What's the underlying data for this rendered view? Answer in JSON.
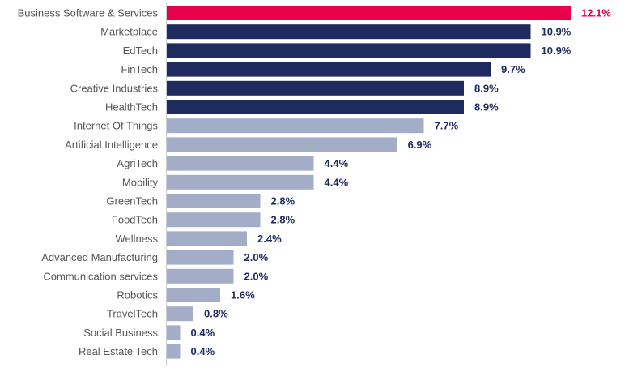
{
  "chart_data": {
    "type": "bar",
    "orientation": "horizontal",
    "categories": [
      "Business Software & Services",
      "Marketplace",
      "EdTech",
      "FinTech",
      "Creative Industries",
      "HealthTech",
      "Internet Of Things",
      "Artificial Intelligence",
      "AgriTech",
      "Mobility",
      "GreenTech",
      "FoodTech",
      "Wellness",
      "Advanced Manufacturing",
      "Communication services",
      "Robotics",
      "TravelTech",
      "Social Business",
      "Real Estate Tech"
    ],
    "values": [
      12.1,
      10.9,
      10.9,
      9.7,
      8.9,
      8.9,
      7.7,
      6.9,
      4.4,
      4.4,
      2.8,
      2.8,
      2.4,
      2.0,
      2.0,
      1.6,
      0.8,
      0.4,
      0.4
    ],
    "value_labels": [
      "12.1%",
      "10.9%",
      "10.9%",
      "9.7%",
      "8.9%",
      "8.9%",
      "7.7%",
      "6.9%",
      "4.4%",
      "4.4%",
      "2.8%",
      "2.8%",
      "2.4%",
      "2.0%",
      "2.0%",
      "1.6%",
      "0.8%",
      "0.4%",
      "0.4%"
    ],
    "bar_colors": [
      "#e8004c",
      "#1f2a5e",
      "#1f2a5e",
      "#1f2a5e",
      "#1f2a5e",
      "#1f2a5e",
      "#a3adc7",
      "#a3adc7",
      "#a3adc7",
      "#a3adc7",
      "#a3adc7",
      "#a3adc7",
      "#a3adc7",
      "#a3adc7",
      "#a3adc7",
      "#a3adc7",
      "#a3adc7",
      "#a3adc7",
      "#a3adc7"
    ],
    "label_colors": [
      "#e8004c",
      "#1f2a5e",
      "#1f2a5e",
      "#1f2a5e",
      "#1f2a5e",
      "#1f2a5e",
      "#1f2a5e",
      "#1f2a5e",
      "#1f2a5e",
      "#1f2a5e",
      "#1f2a5e",
      "#1f2a5e",
      "#1f2a5e",
      "#1f2a5e",
      "#1f2a5e",
      "#1f2a5e",
      "#1f2a5e",
      "#1f2a5e",
      "#1f2a5e"
    ],
    "xlim": [
      0,
      12.1
    ],
    "grid": false,
    "title": "",
    "xlabel": "",
    "ylabel": ""
  }
}
